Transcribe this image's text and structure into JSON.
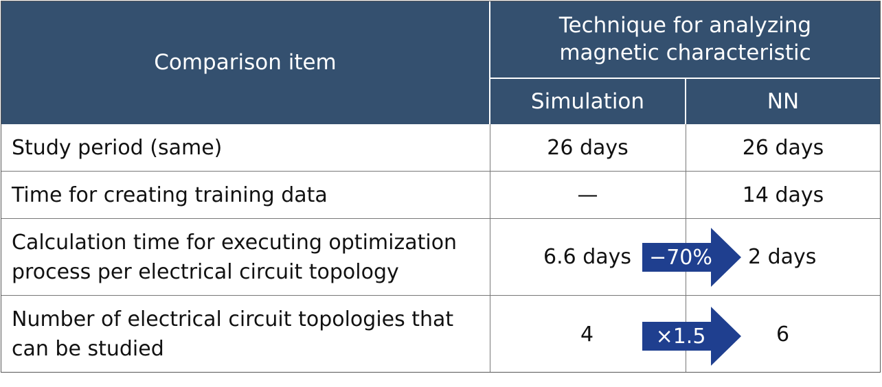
{
  "header": {
    "comparison_item": "Comparison item",
    "technique_line1": "Technique for analyzing",
    "technique_line2": "magnetic characteristic",
    "simulation": "Simulation",
    "nn": "NN"
  },
  "rows": [
    {
      "item_line1": "Study period (same)",
      "item_line2": "",
      "simulation": "26 days",
      "nn": "26 days"
    },
    {
      "item_line1": "Time for creating training data",
      "item_line2": "",
      "simulation": "—",
      "nn": "14 days"
    },
    {
      "item_line1": "Calculation time for executing optimization",
      "item_line2": "process per electrical circuit topology",
      "simulation": "6.6 days",
      "nn": "2 days",
      "arrow": "−70%"
    },
    {
      "item_line1": "Number of electrical circuit topologies that",
      "item_line2": "can be studied",
      "simulation": "4",
      "nn": "6",
      "arrow": "×1.5"
    }
  ],
  "colors": {
    "header_bg": "#34506f",
    "arrow_fill": "#1f3f8f"
  }
}
